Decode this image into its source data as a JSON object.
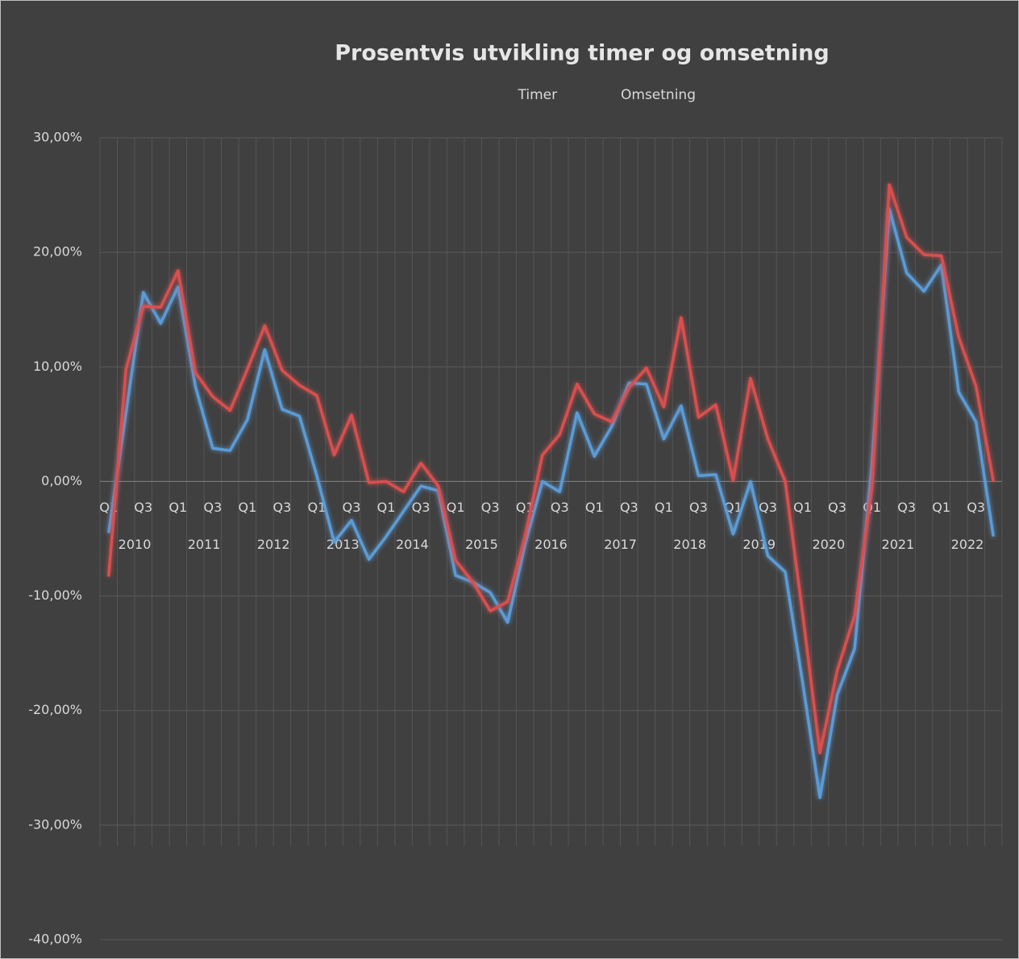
{
  "chart_data": {
    "type": "line",
    "title": "Prosentvis utvikling timer og omsetning",
    "categories": [
      "Q1",
      null,
      "Q3",
      null,
      "Q1",
      null,
      "Q3",
      null,
      "Q1",
      null,
      "Q3",
      null,
      "Q1",
      null,
      "Q3",
      null,
      "Q1",
      null,
      "Q3",
      null,
      "Q1",
      null,
      "Q3",
      null,
      "Q1",
      null,
      "Q3",
      null,
      "Q1",
      null,
      "Q3",
      null,
      "Q1",
      null,
      "Q3",
      null,
      "Q1",
      null,
      "Q3",
      null,
      "Q1",
      null,
      "Q3",
      null,
      "Q1",
      null,
      "Q3",
      null,
      "Q1",
      null,
      "Q3",
      null
    ],
    "category_groups": [
      "2010",
      "2011",
      "2012",
      "2013",
      "2014",
      "2015",
      "2016",
      "2017",
      "2018",
      "2019",
      "2020",
      "2021",
      "2022"
    ],
    "series": [
      {
        "name": "Timer",
        "color": "#5b9bd5",
        "values": [
          -4.5,
          6.0,
          16.5,
          13.8,
          17.0,
          8.3,
          2.9,
          2.7,
          5.4,
          11.5,
          6.3,
          5.7,
          0.5,
          -5.3,
          -3.4,
          -6.8,
          -4.8,
          -2.6,
          -0.4,
          -0.8,
          -8.2,
          -8.8,
          -9.7,
          -12.3,
          -5.5,
          0.0,
          -0.9,
          6.0,
          2.2,
          4.8,
          8.6,
          8.5,
          3.7,
          6.6,
          0.5,
          0.6,
          -4.6,
          0.0,
          -6.5,
          -7.9,
          -17.5,
          -27.6,
          -18.6,
          -14.6,
          1.5,
          23.8,
          18.2,
          16.6,
          18.9,
          7.8,
          5.2,
          -4.8
        ]
      },
      {
        "name": "Omsetning",
        "color": "#d9504f",
        "values": [
          -8.3,
          9.8,
          15.3,
          15.2,
          18.4,
          9.5,
          7.4,
          6.2,
          9.8,
          13.6,
          9.7,
          8.4,
          7.5,
          2.3,
          5.8,
          -0.1,
          0.0,
          -0.9,
          1.6,
          -0.4,
          -6.9,
          -8.8,
          -11.3,
          -10.5,
          -4.8,
          2.3,
          4.1,
          8.5,
          5.9,
          5.2,
          8.2,
          9.9,
          6.5,
          14.3,
          5.6,
          6.7,
          0.1,
          9.0,
          3.7,
          0.0,
          -11.5,
          -23.7,
          -16.5,
          -11.7,
          -0.5,
          25.9,
          21.3,
          19.8,
          19.7,
          12.6,
          8.3,
          0.0
        ]
      }
    ],
    "ylim": [
      -40,
      30
    ],
    "yticks": [
      {
        "value": -40,
        "label": "-40,00%"
      },
      {
        "value": -30,
        "label": "-30,00%"
      },
      {
        "value": -20,
        "label": "-20,00%"
      },
      {
        "value": -10,
        "label": "-10,00%"
      },
      {
        "value": 0,
        "label": "0,00%"
      },
      {
        "value": 10,
        "label": "10,00%"
      },
      {
        "value": 20,
        "label": "20,00%"
      },
      {
        "value": 30,
        "label": "30,00%"
      }
    ],
    "grid": true,
    "legend": "top"
  }
}
